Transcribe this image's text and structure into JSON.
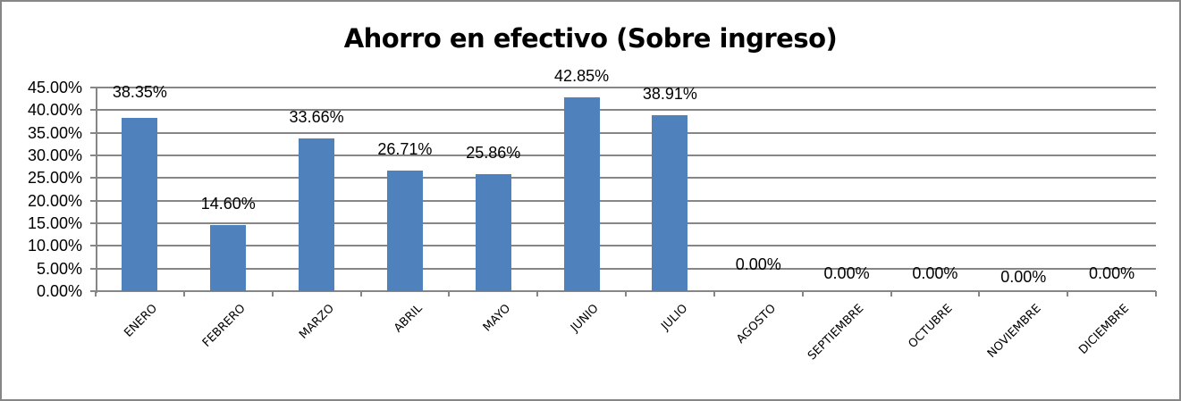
{
  "chart_data": {
    "type": "bar",
    "title": "Ahorro en efectivo (Sobre ingreso)",
    "xlabel": "",
    "ylabel": "",
    "ylim": [
      0,
      45
    ],
    "grid": true,
    "legend": "none",
    "yticks": [
      "45.00%",
      "40.00%",
      "35.00%",
      "30.00%",
      "25.00%",
      "20.00%",
      "15.00%",
      "10.00%",
      "5.00%",
      "0.00%"
    ],
    "categories": [
      "ENERO",
      "FEBRERO",
      "MARZO",
      "ABRIL",
      "MAYO",
      "JUNIO",
      "JULIO",
      "AGOSTO",
      "SEPTIEMBRE",
      "OCTUBRE",
      "NOVIEMBRE",
      "DICIEMBRE"
    ],
    "values": [
      38.35,
      14.6,
      33.66,
      26.71,
      25.86,
      42.85,
      38.91,
      0.0,
      0.0,
      0.0,
      0.0,
      0.0
    ],
    "data_labels": [
      "38.35%",
      "14.60%",
      "33.66%",
      "26.71%",
      "25.86%",
      "42.85%",
      "38.91%",
      "0.00%",
      "0.00%",
      "0.00%",
      "0.00%",
      "0.00%"
    ],
    "bar_color": "#4F81BD"
  }
}
